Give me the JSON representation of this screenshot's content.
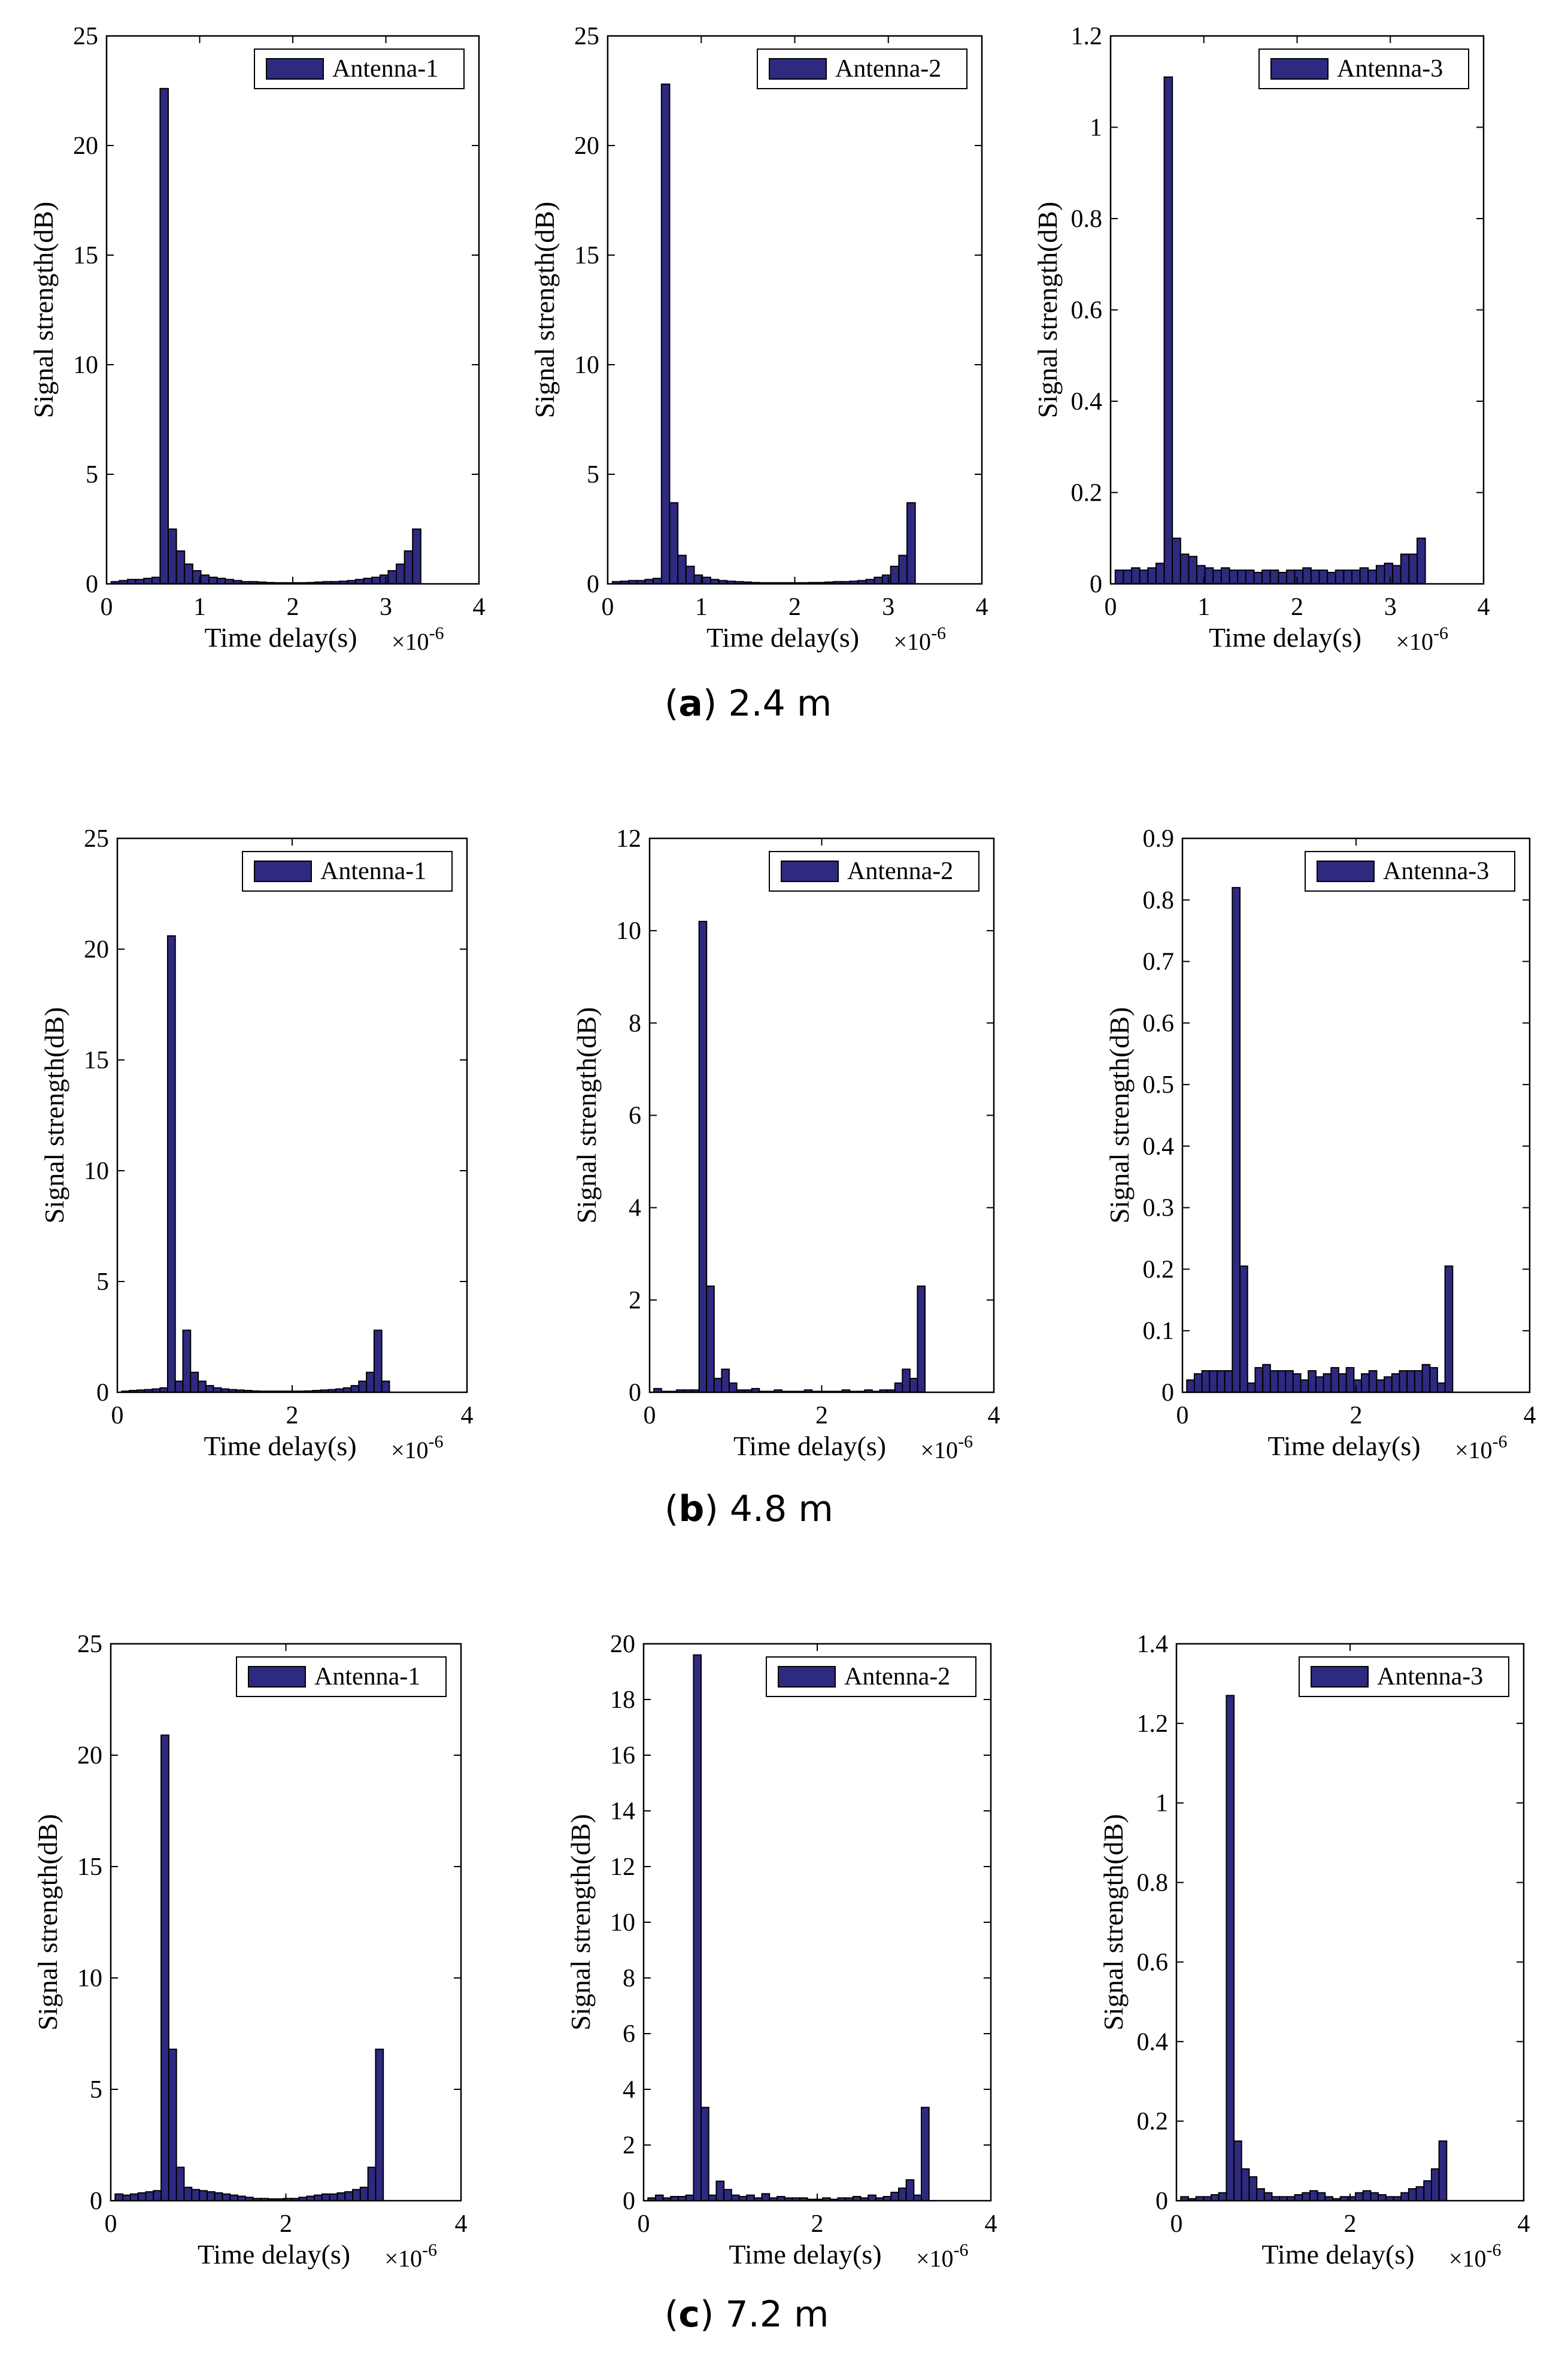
{
  "colors": {
    "bar": "#2e2a80",
    "axis": "#000000",
    "background": "#ffffff"
  },
  "captions": [
    {
      "letter": "a",
      "text": "2.4 m"
    },
    {
      "letter": "b",
      "text": "4.8 m"
    },
    {
      "letter": "c",
      "text": "7.2 m"
    }
  ],
  "chart_data": [
    {
      "type": "bar",
      "panel": "a1",
      "legend": "Antenna-1",
      "legend_position": "top-right",
      "xlabel": "Time delay(s)",
      "x_exponent": "×10^{-6}",
      "ylabel": "Signal strength(dB)",
      "xlim": [
        0,
        4
      ],
      "ylim": [
        0,
        25
      ],
      "xticks": [
        0,
        1,
        2,
        3,
        4
      ],
      "yticks": [
        0,
        5,
        10,
        15,
        20,
        25
      ],
      "bin_start": 0.05,
      "bin_width": 0.0875,
      "values": [
        0.1,
        0.15,
        0.2,
        0.2,
        0.25,
        0.3,
        22.6,
        2.5,
        1.5,
        0.9,
        0.6,
        0.4,
        0.3,
        0.25,
        0.2,
        0.15,
        0.1,
        0.1,
        0.08,
        0.06,
        0.05,
        0.05,
        0.05,
        0.05,
        0.06,
        0.08,
        0.1,
        0.1,
        0.12,
        0.15,
        0.2,
        0.25,
        0.3,
        0.4,
        0.6,
        0.9,
        1.5,
        2.5
      ]
    },
    {
      "type": "bar",
      "panel": "a2",
      "legend": "Antenna-2",
      "legend_position": "top-right",
      "xlabel": "Time delay(s)",
      "x_exponent": "×10^{-6}",
      "ylabel": "Signal strength(dB)",
      "xlim": [
        0,
        4
      ],
      "ylim": [
        0,
        25
      ],
      "xticks": [
        0,
        1,
        2,
        3,
        4
      ],
      "yticks": [
        0,
        5,
        10,
        15,
        20,
        25
      ],
      "bin_start": 0.05,
      "bin_width": 0.0875,
      "values": [
        0.1,
        0.12,
        0.15,
        0.15,
        0.2,
        0.25,
        22.8,
        3.7,
        1.3,
        0.8,
        0.4,
        0.3,
        0.2,
        0.15,
        0.12,
        0.1,
        0.08,
        0.06,
        0.05,
        0.05,
        0.05,
        0.05,
        0.05,
        0.05,
        0.06,
        0.06,
        0.08,
        0.1,
        0.1,
        0.12,
        0.15,
        0.2,
        0.3,
        0.4,
        0.8,
        1.3,
        3.7
      ]
    },
    {
      "type": "bar",
      "panel": "a3",
      "legend": "Antenna-3",
      "legend_position": "top-right",
      "xlabel": "Time delay(s)",
      "x_exponent": "×10^{-6}",
      "ylabel": "Signal strength(dB)",
      "xlim": [
        0,
        4
      ],
      "ylim": [
        0,
        1.2
      ],
      "xticks": [
        0,
        1,
        2,
        3,
        4
      ],
      "yticks": [
        0,
        0.2,
        0.4,
        0.6,
        0.8,
        1,
        1.2
      ],
      "bin_start": 0.05,
      "bin_width": 0.0875,
      "values": [
        0.03,
        0.03,
        0.035,
        0.03,
        0.035,
        0.045,
        1.11,
        0.1,
        0.065,
        0.06,
        0.04,
        0.035,
        0.03,
        0.035,
        0.03,
        0.03,
        0.03,
        0.025,
        0.03,
        0.03,
        0.025,
        0.03,
        0.03,
        0.035,
        0.03,
        0.03,
        0.025,
        0.03,
        0.03,
        0.03,
        0.035,
        0.03,
        0.04,
        0.045,
        0.04,
        0.065,
        0.065,
        0.1
      ]
    },
    {
      "type": "bar",
      "panel": "b1",
      "legend": "Antenna-1",
      "legend_position": "top-right",
      "xlabel": "Time delay(s)",
      "x_exponent": "×10^{-6}",
      "ylabel": "Signal strength(dB)",
      "xlim": [
        0,
        4
      ],
      "ylim": [
        0,
        25
      ],
      "xticks": [
        0,
        2,
        4
      ],
      "yticks": [
        0,
        5,
        10,
        15,
        20,
        25
      ],
      "bin_start": 0.05,
      "bin_width": 0.0875,
      "values": [
        0.05,
        0.08,
        0.1,
        0.12,
        0.15,
        0.2,
        20.6,
        0.5,
        2.8,
        0.9,
        0.5,
        0.3,
        0.2,
        0.15,
        0.12,
        0.1,
        0.08,
        0.06,
        0.05,
        0.05,
        0.05,
        0.05,
        0.05,
        0.05,
        0.06,
        0.08,
        0.1,
        0.12,
        0.15,
        0.2,
        0.3,
        0.5,
        0.9,
        2.8,
        0.5
      ]
    },
    {
      "type": "bar",
      "panel": "b2",
      "legend": "Antenna-2",
      "legend_position": "top-right",
      "xlabel": "Time delay(s)",
      "x_exponent": "×10^{-6}",
      "ylabel": "Signal strength(dB)",
      "xlim": [
        0,
        4
      ],
      "ylim": [
        0,
        12
      ],
      "xticks": [
        0,
        2,
        4
      ],
      "yticks": [
        0,
        2,
        4,
        6,
        8,
        10,
        12
      ],
      "bin_start": 0.05,
      "bin_width": 0.0875,
      "values": [
        0.08,
        0.02,
        0.02,
        0.05,
        0.05,
        0.05,
        10.2,
        2.3,
        0.3,
        0.5,
        0.2,
        0.05,
        0.05,
        0.08,
        0.02,
        0.02,
        0.05,
        0.02,
        0.02,
        0.02,
        0.05,
        0.02,
        0.02,
        0.02,
        0.02,
        0.05,
        0.02,
        0.02,
        0.05,
        0.02,
        0.05,
        0.05,
        0.2,
        0.5,
        0.3,
        2.3
      ]
    },
    {
      "type": "bar",
      "panel": "b3",
      "legend": "Antenna-3",
      "legend_position": "top-right",
      "xlabel": "Time delay(s)",
      "x_exponent": "×10^{-6}",
      "ylabel": "Signal strength(dB)",
      "xlim": [
        0,
        4
      ],
      "ylim": [
        0,
        0.9
      ],
      "xticks": [
        0,
        2,
        4
      ],
      "yticks": [
        0,
        0.1,
        0.2,
        0.3,
        0.4,
        0.5,
        0.6,
        0.7,
        0.8,
        0.9
      ],
      "bin_start": 0.05,
      "bin_width": 0.0875,
      "values": [
        0.02,
        0.03,
        0.035,
        0.035,
        0.035,
        0.035,
        0.82,
        0.205,
        0.015,
        0.04,
        0.045,
        0.035,
        0.035,
        0.035,
        0.03,
        0.02,
        0.035,
        0.025,
        0.03,
        0.04,
        0.03,
        0.04,
        0.02,
        0.03,
        0.035,
        0.02,
        0.025,
        0.03,
        0.035,
        0.035,
        0.035,
        0.045,
        0.04,
        0.015,
        0.205
      ]
    },
    {
      "type": "bar",
      "panel": "c1",
      "legend": "Antenna-1",
      "legend_position": "top-right",
      "xlabel": "Time delay(s)",
      "x_exponent": "×10^{-6}",
      "ylabel": "Signal strength(dB)",
      "xlim": [
        0,
        4
      ],
      "ylim": [
        0,
        25
      ],
      "xticks": [
        0,
        2,
        4
      ],
      "yticks": [
        0,
        5,
        10,
        15,
        20,
        25
      ],
      "bin_start": 0.05,
      "bin_width": 0.0875,
      "values": [
        0.3,
        0.25,
        0.3,
        0.35,
        0.4,
        0.45,
        20.9,
        6.8,
        1.5,
        0.6,
        0.5,
        0.45,
        0.4,
        0.35,
        0.3,
        0.25,
        0.2,
        0.15,
        0.1,
        0.1,
        0.08,
        0.08,
        0.1,
        0.1,
        0.15,
        0.2,
        0.25,
        0.3,
        0.3,
        0.35,
        0.4,
        0.5,
        0.6,
        1.5,
        6.8
      ]
    },
    {
      "type": "bar",
      "panel": "c2",
      "legend": "Antenna-2",
      "legend_position": "top-right",
      "xlabel": "Time delay(s)",
      "x_exponent": "×10^{-6}",
      "ylabel": "Signal strength(dB)",
      "xlim": [
        0,
        4
      ],
      "ylim": [
        0,
        20
      ],
      "xticks": [
        0,
        2,
        4
      ],
      "yticks": [
        0,
        2,
        4,
        6,
        8,
        10,
        12,
        14,
        16,
        18,
        20
      ],
      "bin_start": 0.05,
      "bin_width": 0.0875,
      "values": [
        0.1,
        0.2,
        0.1,
        0.15,
        0.15,
        0.2,
        19.6,
        3.35,
        0.2,
        0.7,
        0.4,
        0.2,
        0.15,
        0.2,
        0.1,
        0.25,
        0.1,
        0.15,
        0.1,
        0.1,
        0.1,
        0.05,
        0.05,
        0.1,
        0.05,
        0.1,
        0.1,
        0.15,
        0.1,
        0.2,
        0.1,
        0.15,
        0.3,
        0.45,
        0.75,
        0.2,
        3.35
      ]
    },
    {
      "type": "bar",
      "panel": "c3",
      "legend": "Antenna-3",
      "legend_position": "top-right",
      "xlabel": "Time delay(s)",
      "x_exponent": "×10^{-6}",
      "ylabel": "Signal strength(dB)",
      "xlim": [
        0,
        4
      ],
      "ylim": [
        0,
        1.4
      ],
      "xticks": [
        0,
        2,
        4
      ],
      "yticks": [
        0,
        0.2,
        0.4,
        0.6,
        0.8,
        1,
        1.2,
        1.4
      ],
      "bin_start": 0.05,
      "bin_width": 0.0875,
      "values": [
        0.01,
        0.005,
        0.01,
        0.01,
        0.015,
        0.02,
        1.27,
        0.15,
        0.08,
        0.06,
        0.03,
        0.02,
        0.01,
        0.01,
        0.01,
        0.015,
        0.02,
        0.025,
        0.02,
        0.01,
        0.005,
        0.01,
        0.01,
        0.02,
        0.025,
        0.02,
        0.015,
        0.01,
        0.01,
        0.02,
        0.03,
        0.035,
        0.05,
        0.08,
        0.15
      ]
    }
  ]
}
